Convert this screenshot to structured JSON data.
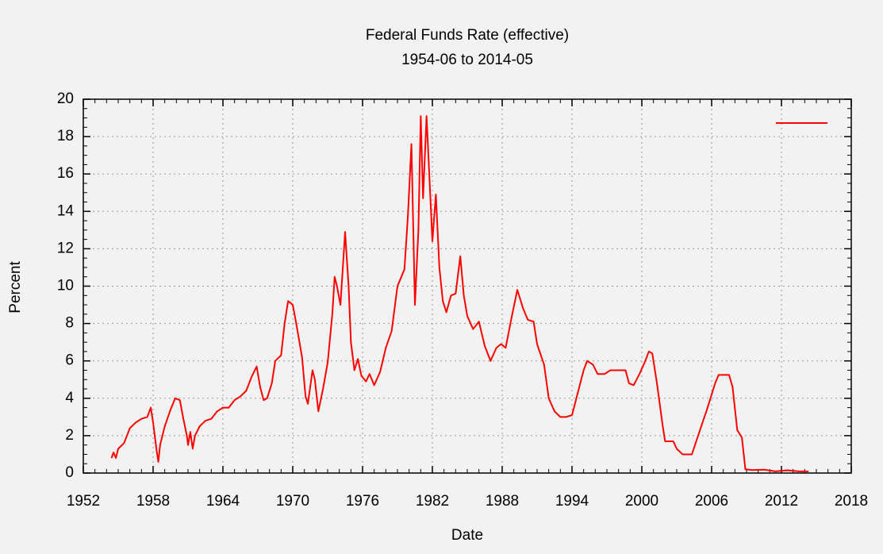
{
  "chart_data": {
    "type": "line",
    "title": "Federal Funds Rate (effective)",
    "subtitle": "1954-06 to 2014-05",
    "x_label": "Date",
    "y_label": "Percent",
    "color": "#ff0000",
    "grid": true,
    "legend": "top-right",
    "xlim": [
      1952,
      2018
    ],
    "xticks": [
      1952,
      1958,
      1964,
      1970,
      1976,
      1982,
      1988,
      1994,
      2000,
      2006,
      2012,
      2018
    ],
    "ylim": [
      0,
      20
    ],
    "yticks": [
      0,
      2,
      4,
      6,
      8,
      10,
      12,
      14,
      16,
      18,
      20
    ],
    "x": [
      1954.42,
      1954.6,
      1954.8,
      1955.0,
      1955.5,
      1956.0,
      1956.5,
      1957.0,
      1957.5,
      1957.8,
      1958.0,
      1958.3,
      1958.45,
      1958.6,
      1959.0,
      1959.5,
      1959.9,
      1960.3,
      1960.6,
      1960.9,
      1961.0,
      1961.2,
      1961.4,
      1961.6,
      1962.0,
      1962.5,
      1963.0,
      1963.5,
      1964.0,
      1964.5,
      1965.0,
      1965.5,
      1966.0,
      1966.5,
      1966.9,
      1967.2,
      1967.5,
      1967.8,
      1968.2,
      1968.5,
      1969.0,
      1969.3,
      1969.6,
      1970.0,
      1970.3,
      1970.8,
      1971.1,
      1971.3,
      1971.7,
      1971.9,
      1972.2,
      1972.6,
      1973.0,
      1973.4,
      1973.6,
      1973.8,
      1974.1,
      1974.5,
      1974.8,
      1975.0,
      1975.3,
      1975.6,
      1975.9,
      1976.3,
      1976.6,
      1977.0,
      1977.5,
      1978.0,
      1978.5,
      1979.0,
      1979.6,
      1979.9,
      1980.2,
      1980.5,
      1980.8,
      1981.0,
      1981.2,
      1981.5,
      1981.8,
      1982.0,
      1982.3,
      1982.6,
      1982.9,
      1983.2,
      1983.6,
      1984.0,
      1984.4,
      1984.7,
      1985.0,
      1985.5,
      1986.0,
      1986.5,
      1987.0,
      1987.5,
      1987.9,
      1988.3,
      1988.8,
      1989.3,
      1989.8,
      1990.2,
      1990.7,
      1991.0,
      1991.6,
      1992.0,
      1992.5,
      1993.0,
      1993.5,
      1994.0,
      1994.5,
      1995.0,
      1995.3,
      1995.8,
      1996.2,
      1996.8,
      1997.3,
      1998.0,
      1998.6,
      1998.9,
      1999.3,
      1999.8,
      2000.3,
      2000.6,
      2000.9,
      2001.3,
      2001.8,
      2002.0,
      2002.7,
      2003.0,
      2003.5,
      2004.3,
      2005.0,
      2005.6,
      2006.3,
      2006.6,
      2007.5,
      2007.8,
      2008.2,
      2008.6,
      2008.9,
      2009.5,
      2010.5,
      2011.5,
      2012.5,
      2013.5,
      2014.33
    ],
    "values": [
      0.8,
      1.1,
      0.8,
      1.3,
      1.6,
      2.4,
      2.7,
      2.9,
      3.0,
      3.5,
      2.7,
      1.2,
      0.6,
      1.5,
      2.5,
      3.4,
      4.0,
      3.9,
      2.9,
      2.0,
      1.5,
      2.2,
      1.3,
      2.0,
      2.5,
      2.8,
      2.9,
      3.3,
      3.5,
      3.5,
      3.9,
      4.1,
      4.4,
      5.2,
      5.7,
      4.6,
      3.9,
      4.0,
      4.8,
      6.0,
      6.3,
      8.0,
      9.2,
      9.0,
      8.0,
      6.2,
      4.1,
      3.7,
      5.5,
      5.0,
      3.3,
      4.5,
      5.9,
      8.5,
      10.5,
      10.0,
      9.0,
      12.9,
      10.0,
      7.0,
      5.5,
      6.1,
      5.2,
      4.9,
      5.3,
      4.7,
      5.4,
      6.7,
      7.6,
      10.0,
      10.9,
      13.8,
      17.6,
      9.0,
      13.0,
      19.1,
      14.7,
      19.1,
      15.1,
      12.4,
      14.9,
      11.0,
      9.2,
      8.6,
      9.5,
      9.6,
      11.6,
      9.5,
      8.4,
      7.7,
      8.1,
      6.8,
      6.0,
      6.7,
      6.9,
      6.7,
      8.3,
      9.8,
      8.8,
      8.2,
      8.1,
      6.9,
      5.8,
      4.0,
      3.3,
      3.0,
      3.0,
      3.1,
      4.3,
      5.5,
      6.0,
      5.8,
      5.3,
      5.3,
      5.5,
      5.5,
      5.5,
      4.8,
      4.7,
      5.3,
      6.0,
      6.5,
      6.4,
      4.8,
      2.5,
      1.7,
      1.7,
      1.3,
      1.0,
      1.0,
      2.3,
      3.4,
      4.8,
      5.25,
      5.25,
      4.6,
      2.3,
      1.9,
      0.2,
      0.16,
      0.18,
      0.09,
      0.15,
      0.09,
      0.09
    ]
  }
}
